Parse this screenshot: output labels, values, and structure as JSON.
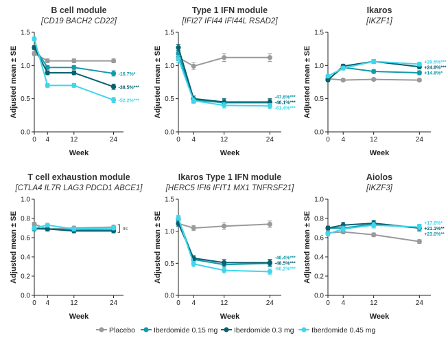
{
  "colors": {
    "placebo": "#9a9a9a",
    "iber_015": "#119aaa",
    "iber_03": "#08606e",
    "iber_045": "#3fd6ec"
  },
  "legend": [
    {
      "key": "placebo",
      "label": "Placebo"
    },
    {
      "key": "iber_015",
      "label": "Iberdomide 0.15 mg"
    },
    {
      "key": "iber_03",
      "label": "Iberdomide 0.3 mg"
    },
    {
      "key": "iber_045",
      "label": "Iberdomide 0.45 mg"
    }
  ],
  "chart_data": [
    {
      "type": "line",
      "title": "B cell module",
      "subtitle": "[CD19 BACH2 CD22]",
      "xlabel": "Week",
      "ylabel": "Adjusted mean ± SE",
      "x": [
        0,
        4,
        12,
        24
      ],
      "xticks": [
        "0",
        "4",
        "12",
        "24"
      ],
      "ylim": [
        0,
        1.5
      ],
      "yticks": [
        "0.0",
        "0.5",
        "1.0",
        "1.5"
      ],
      "series": [
        {
          "key": "placebo",
          "values": [
            1.18,
            1.07,
            1.07,
            1.07
          ],
          "se": [
            0.03,
            0.03,
            0.03,
            0.03
          ],
          "label": ""
        },
        {
          "key": "iber_015",
          "values": [
            1.27,
            0.97,
            0.97,
            0.88
          ],
          "se": [
            0.03,
            0.03,
            0.03,
            0.04
          ],
          "label": "-16.7%*"
        },
        {
          "key": "iber_03",
          "values": [
            1.27,
            0.89,
            0.89,
            0.68
          ],
          "se": [
            0.03,
            0.03,
            0.03,
            0.04
          ],
          "label": "-38.5%***"
        },
        {
          "key": "iber_045",
          "values": [
            1.4,
            0.7,
            0.7,
            0.48
          ],
          "se": [
            0.03,
            0.03,
            0.03,
            0.04
          ],
          "label": "-52.2%***"
        }
      ]
    },
    {
      "type": "line",
      "title": "Type 1 IFN module",
      "subtitle": "[IFI27 IFI44 IFI44L RSAD2]",
      "xlabel": "Week",
      "ylabel": "Adjusted mean ± SE",
      "x": [
        0,
        4,
        12,
        24
      ],
      "xticks": [
        "0",
        "4",
        "12",
        "24"
      ],
      "ylim": [
        0,
        1.5
      ],
      "yticks": [
        "0.0",
        "0.5",
        "1.0",
        "1.5"
      ],
      "series": [
        {
          "key": "placebo",
          "values": [
            1.12,
            0.99,
            1.12,
            1.12
          ],
          "se": [
            0.05,
            0.05,
            0.06,
            0.06
          ],
          "label": ""
        },
        {
          "key": "iber_015",
          "values": [
            1.18,
            0.48,
            0.44,
            0.44
          ],
          "se": [
            0.05,
            0.04,
            0.05,
            0.05
          ],
          "label": "-47.6%***"
        },
        {
          "key": "iber_03",
          "values": [
            1.27,
            0.5,
            0.45,
            0.45
          ],
          "se": [
            0.05,
            0.04,
            0.05,
            0.05
          ],
          "label": "-46.1%***"
        },
        {
          "key": "iber_045",
          "values": [
            1.1,
            0.47,
            0.4,
            0.39
          ],
          "se": [
            0.05,
            0.04,
            0.04,
            0.04
          ],
          "label": "-61.4%***"
        }
      ]
    },
    {
      "type": "line",
      "title": "Ikaros",
      "subtitle": "[IKZF1]",
      "xlabel": "Week",
      "ylabel": "Adjusted mean ± SE",
      "x": [
        0,
        4,
        12,
        24
      ],
      "xticks": [
        "0",
        "4",
        "12",
        "24"
      ],
      "ylim": [
        0,
        1.5
      ],
      "yticks": [
        "0.0",
        "0.5",
        "1.0",
        "1.5"
      ],
      "series": [
        {
          "key": "placebo",
          "values": [
            0.8,
            0.78,
            0.79,
            0.78
          ],
          "se": [
            0.02,
            0.02,
            0.02,
            0.02
          ],
          "label": ""
        },
        {
          "key": "iber_015",
          "values": [
            0.79,
            0.97,
            0.91,
            0.89
          ],
          "se": [
            0.02,
            0.03,
            0.03,
            0.03
          ],
          "label": "+14.8%*"
        },
        {
          "key": "iber_03",
          "values": [
            0.78,
            0.99,
            1.06,
            0.98
          ],
          "se": [
            0.02,
            0.03,
            0.03,
            0.03
          ],
          "label": "+24.8%***"
        },
        {
          "key": "iber_045",
          "values": [
            0.84,
            0.96,
            1.06,
            1.02
          ],
          "se": [
            0.02,
            0.03,
            0.03,
            0.03
          ],
          "label": "+29.5%***"
        }
      ]
    },
    {
      "type": "line",
      "title": "T cell exhaustion module",
      "subtitle": "[CTLA4 IL7R LAG3 PDCD1 ABCE1]",
      "xlabel": "Week",
      "ylabel": "Adjusted mean ± SE",
      "x": [
        0,
        4,
        12,
        24
      ],
      "xticks": [
        "0",
        "4",
        "12",
        "24"
      ],
      "ylim": [
        0,
        1.0
      ],
      "yticks": [
        "0.0",
        "0.2",
        "0.4",
        "0.6",
        "0.8",
        "1.0"
      ],
      "bracket": "ns",
      "series": [
        {
          "key": "placebo",
          "values": [
            0.74,
            0.69,
            0.7,
            0.71
          ],
          "se": [
            0.02,
            0.02,
            0.02,
            0.02
          ],
          "label": ""
        },
        {
          "key": "iber_015",
          "values": [
            0.69,
            0.69,
            0.68,
            0.68
          ],
          "se": [
            0.02,
            0.02,
            0.02,
            0.02
          ],
          "label": ""
        },
        {
          "key": "iber_03",
          "values": [
            0.7,
            0.69,
            0.67,
            0.67
          ],
          "se": [
            0.02,
            0.02,
            0.02,
            0.02
          ],
          "label": ""
        },
        {
          "key": "iber_045",
          "values": [
            0.7,
            0.73,
            0.69,
            0.7
          ],
          "se": [
            0.02,
            0.02,
            0.02,
            0.02
          ],
          "label": ""
        }
      ]
    },
    {
      "type": "line",
      "title": "Ikaros Type 1 IFN module",
      "subtitle": "[HERC5 IFI6 IFIT1 MX1 TNFRSF21]",
      "xlabel": "Week",
      "ylabel": "Adjusted mean ± SE",
      "x": [
        0,
        4,
        12,
        24
      ],
      "xticks": [
        "0",
        "4",
        "12",
        "24"
      ],
      "ylim": [
        0,
        1.5
      ],
      "yticks": [
        "0.0",
        "0.5",
        "1.0",
        "1.5"
      ],
      "series": [
        {
          "key": "placebo",
          "values": [
            1.12,
            1.05,
            1.08,
            1.11
          ],
          "se": [
            0.04,
            0.04,
            0.05,
            0.05
          ],
          "label": ""
        },
        {
          "key": "iber_015",
          "values": [
            1.19,
            0.56,
            0.48,
            0.5
          ],
          "se": [
            0.04,
            0.04,
            0.05,
            0.05
          ],
          "label": "-46.4%***"
        },
        {
          "key": "iber_03",
          "values": [
            1.12,
            0.58,
            0.51,
            0.51
          ],
          "se": [
            0.04,
            0.04,
            0.05,
            0.05
          ],
          "label": "-48.5%***"
        },
        {
          "key": "iber_045",
          "values": [
            1.21,
            0.49,
            0.39,
            0.37
          ],
          "se": [
            0.04,
            0.04,
            0.04,
            0.04
          ],
          "label": "-60.2%***"
        }
      ]
    },
    {
      "type": "line",
      "title": "Aiolos",
      "subtitle": "[IKZF3]",
      "xlabel": "Week",
      "ylabel": "Adjusted mean ± SE",
      "x": [
        0,
        4,
        12,
        24
      ],
      "xticks": [
        "0",
        "4",
        "12",
        "24"
      ],
      "ylim": [
        0,
        1.0
      ],
      "yticks": [
        "0.0",
        "0.2",
        "0.4",
        "0.6",
        "0.8",
        "1.0"
      ],
      "series": [
        {
          "key": "placebo",
          "values": [
            0.65,
            0.66,
            0.63,
            0.56
          ],
          "se": [
            0.02,
            0.02,
            0.02,
            0.02
          ],
          "label": ""
        },
        {
          "key": "iber_015",
          "values": [
            0.7,
            0.7,
            0.74,
            0.7
          ],
          "se": [
            0.02,
            0.03,
            0.03,
            0.03
          ],
          "label": "+23.0%**"
        },
        {
          "key": "iber_03",
          "values": [
            0.7,
            0.73,
            0.75,
            0.7
          ],
          "se": [
            0.02,
            0.03,
            0.03,
            0.03
          ],
          "label": "+21.1%**"
        },
        {
          "key": "iber_045",
          "values": [
            0.64,
            0.69,
            0.73,
            0.71
          ],
          "se": [
            0.02,
            0.03,
            0.03,
            0.03
          ],
          "label": "+17.6%*"
        }
      ]
    }
  ]
}
